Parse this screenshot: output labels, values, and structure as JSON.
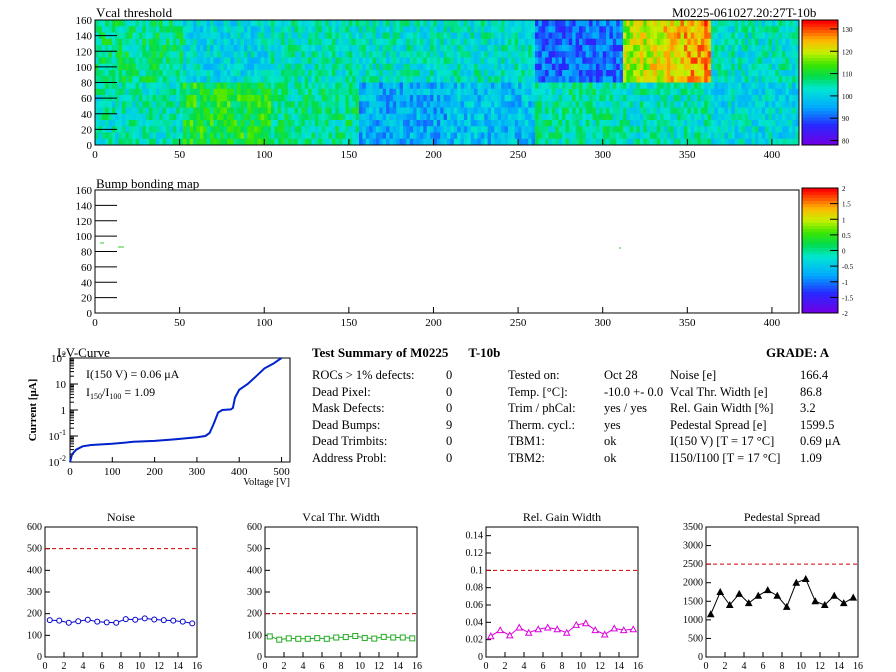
{
  "header": {
    "module_id": "M0225-061027.20:27T-10b"
  },
  "vcal_map": {
    "title": "Vcal threshold",
    "xticks": [
      0,
      50,
      100,
      150,
      200,
      250,
      300,
      350,
      400
    ],
    "yticks": [
      0,
      20,
      40,
      60,
      80,
      100,
      120,
      140,
      160
    ],
    "xlim": [
      0,
      416
    ],
    "ylim": [
      0,
      160
    ],
    "colorbar_ticks": [
      80,
      90,
      100,
      110,
      120,
      130
    ],
    "colorbar_range": [
      78,
      134
    ],
    "rocs": {
      "top_row": [
        107,
        101,
        104,
        103,
        103,
        91,
        118,
        103
      ],
      "bottom_row": [
        104,
        111,
        106,
        96,
        98,
        105,
        104,
        101
      ]
    }
  },
  "bump_map": {
    "title": "Bump bonding map",
    "xticks": [
      0,
      50,
      100,
      150,
      200,
      250,
      300,
      350,
      400
    ],
    "yticks": [
      0,
      20,
      40,
      60,
      80,
      100,
      120,
      140,
      160
    ],
    "colorbar_ticks": [
      "-2",
      "-1.5",
      "-1",
      "-0.5",
      "0",
      "0.5",
      "1",
      "1.5",
      "2"
    ],
    "colorbar_range": [
      -2,
      2
    ]
  },
  "iv": {
    "title": "I-V-Curve",
    "ylabel": "Current [μA]",
    "xlabel": "Voltage [V]",
    "xticks": [
      0,
      100,
      200,
      300,
      400,
      500
    ],
    "xlim": [
      0,
      520
    ],
    "ylim_log": [
      -2,
      2
    ],
    "annot1": "I(150 V) = 0.06 μA",
    "annot2_lhs": "I",
    "annot2_sub1": "150",
    "annot2_sub2": "100",
    "annot2_rhs": "=  1.09",
    "points": [
      [
        0,
        0.01
      ],
      [
        5,
        0.02
      ],
      [
        15,
        0.03
      ],
      [
        30,
        0.04
      ],
      [
        50,
        0.045
      ],
      [
        100,
        0.05
      ],
      [
        150,
        0.06
      ],
      [
        200,
        0.065
      ],
      [
        250,
        0.075
      ],
      [
        300,
        0.09
      ],
      [
        320,
        0.1
      ],
      [
        330,
        0.13
      ],
      [
        340,
        0.3
      ],
      [
        350,
        0.8
      ],
      [
        360,
        1.0
      ],
      [
        380,
        1.05
      ],
      [
        385,
        1.2
      ],
      [
        390,
        3
      ],
      [
        400,
        6
      ],
      [
        420,
        10
      ],
      [
        440,
        20
      ],
      [
        460,
        40
      ],
      [
        480,
        60
      ],
      [
        500,
        100
      ]
    ]
  },
  "summary": {
    "title": "Test Summary of M0225",
    "test": "T-10b",
    "grade": "GRADE:  A",
    "col1": [
      {
        "label": "ROCs > 1% defects:",
        "value": "0"
      },
      {
        "label": "Dead Pixel:",
        "value": "0"
      },
      {
        "label": "Mask Defects:",
        "value": "0"
      },
      {
        "label": "Dead Bumps:",
        "value": "9"
      },
      {
        "label": "Dead Trimbits:",
        "value": "0"
      },
      {
        "label": "Address Probl:",
        "value": "0"
      }
    ],
    "col2": [
      {
        "label": "Tested on:",
        "value": "Oct 28"
      },
      {
        "label": "Temp. [°C]:",
        "value": "-10.0 +- 0.0"
      },
      {
        "label": "Trim / phCal:",
        "value": "yes / yes"
      },
      {
        "label": "Therm. cycl.:",
        "value": "yes"
      },
      {
        "label": "TBM1:",
        "value": "ok"
      },
      {
        "label": "TBM2:",
        "value": "ok"
      }
    ],
    "col3": [
      {
        "label": "Noise [e]",
        "value": "166.4"
      },
      {
        "label": "Vcal Thr. Width [e]",
        "value": "86.8"
      },
      {
        "label": "Rel. Gain Width [%]",
        "value": "3.2"
      },
      {
        "label": "Pedestal Spread [e]",
        "value": "1599.5"
      },
      {
        "label": "I(150 V) [T = 17 °C]",
        "value": "0.69 μA"
      },
      {
        "label": "I150/I100  [T = 17 °C]",
        "value": "1.09"
      }
    ]
  },
  "chart_data": [
    {
      "type": "line",
      "title": "Noise",
      "x": [
        0,
        1,
        2,
        3,
        4,
        5,
        6,
        7,
        8,
        9,
        10,
        11,
        12,
        13,
        14,
        15
      ],
      "values": [
        170,
        168,
        158,
        165,
        172,
        163,
        160,
        158,
        175,
        172,
        178,
        173,
        170,
        168,
        163,
        155
      ],
      "ylim": [
        0,
        600
      ],
      "yticks": [
        0,
        100,
        200,
        300,
        400,
        500,
        600
      ],
      "threshold": 500,
      "color": "#0000cc",
      "marker": "circle"
    },
    {
      "type": "line",
      "title": "Vcal Thr. Width",
      "x": [
        0,
        1,
        2,
        3,
        4,
        5,
        6,
        7,
        8,
        9,
        10,
        11,
        12,
        13,
        14,
        15
      ],
      "values": [
        95,
        80,
        86,
        84,
        84,
        87,
        84,
        90,
        92,
        97,
        88,
        85,
        93,
        90,
        90,
        86
      ],
      "ylim": [
        0,
        600
      ],
      "yticks": [
        0,
        100,
        200,
        300,
        400,
        500,
        600
      ],
      "threshold": 200,
      "color": "#22aa22",
      "marker": "square"
    },
    {
      "type": "line",
      "title": "Rel. Gain Width",
      "x": [
        0,
        1,
        2,
        3,
        4,
        5,
        6,
        7,
        8,
        9,
        10,
        11,
        12,
        13,
        14,
        15
      ],
      "values": [
        0.024,
        0.031,
        0.025,
        0.034,
        0.028,
        0.032,
        0.034,
        0.032,
        0.028,
        0.037,
        0.039,
        0.031,
        0.026,
        0.033,
        0.031,
        0.032
      ],
      "ylim": [
        0,
        0.15
      ],
      "yticks": [
        0,
        0.02,
        0.04,
        0.06,
        0.08,
        0.1,
        0.12,
        0.14
      ],
      "ytick_labels": [
        "0",
        "0.02",
        "0.04",
        "0.06",
        "0.08",
        "0.1",
        "0.12",
        "0.14"
      ],
      "threshold": 0.1,
      "color": "#dd00dd",
      "marker": "triangle"
    },
    {
      "type": "line",
      "title": "Pedestal Spread",
      "x": [
        0,
        1,
        2,
        3,
        4,
        5,
        6,
        7,
        8,
        9,
        10,
        11,
        12,
        13,
        14,
        15
      ],
      "values": [
        1150,
        1750,
        1400,
        1700,
        1450,
        1650,
        1800,
        1650,
        1350,
        2000,
        2100,
        1500,
        1400,
        1650,
        1450,
        1600
      ],
      "ylim": [
        0,
        3500
      ],
      "yticks": [
        0,
        500,
        1000,
        1500,
        2000,
        2500,
        3000,
        3500
      ],
      "threshold": 2500,
      "color": "#000000",
      "marker": "triangle"
    }
  ],
  "small_xticks": [
    0,
    2,
    4,
    6,
    8,
    10,
    12,
    14,
    16
  ]
}
